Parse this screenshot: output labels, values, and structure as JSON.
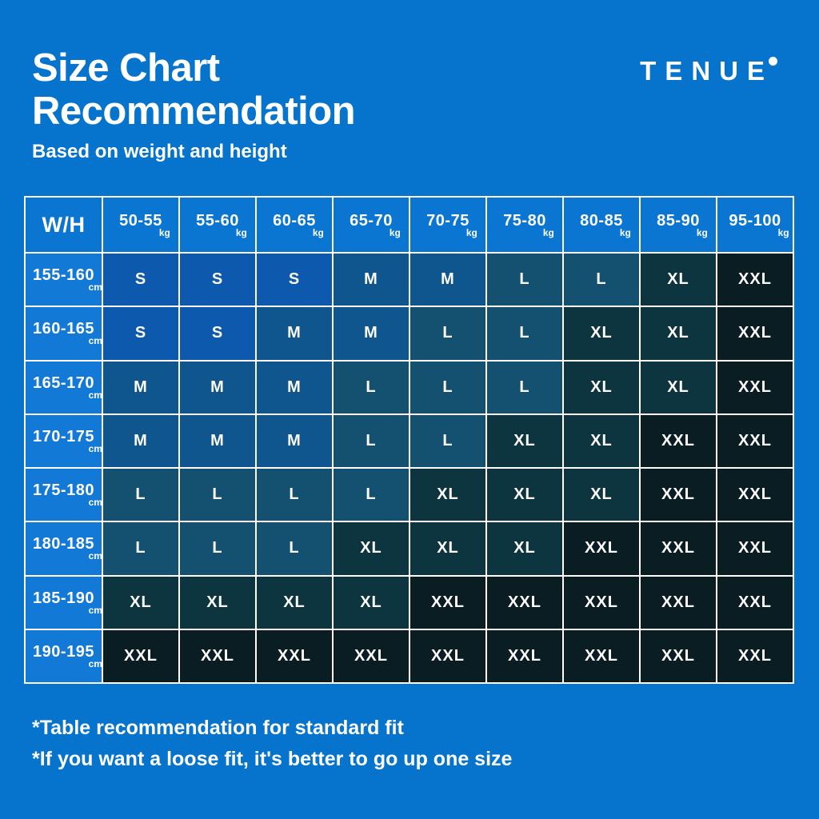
{
  "page": {
    "background_color": "#0673CD",
    "title_line1": "Size Chart",
    "title_line2": "Recommendation",
    "subtitle": "Based on weight and height",
    "brand": "TENUE",
    "footnote1": "*Table recommendation for standard fit",
    "footnote2": "*If you want a loose fit, it's better to go up one size"
  },
  "chart_data": {
    "type": "table",
    "title": "Size Chart Recommendation",
    "subtitle": "Based on weight and height",
    "corner_label": "W/H",
    "weight_unit": "kg",
    "height_unit": "cm",
    "weight_columns_kg": [
      "50-55",
      "55-60",
      "60-65",
      "65-70",
      "70-75",
      "75-80",
      "80-85",
      "85-90",
      "95-100"
    ],
    "height_rows_cm": [
      "155-160",
      "160-165",
      "165-170",
      "170-175",
      "175-180",
      "180-185",
      "185-190",
      "190-195"
    ],
    "sizes": [
      [
        "S",
        "S",
        "S",
        "M",
        "M",
        "L",
        "L",
        "XL",
        "XXL"
      ],
      [
        "S",
        "S",
        "M",
        "M",
        "L",
        "L",
        "XL",
        "XL",
        "XXL"
      ],
      [
        "M",
        "M",
        "M",
        "L",
        "L",
        "L",
        "XL",
        "XL",
        "XXL"
      ],
      [
        "M",
        "M",
        "M",
        "L",
        "L",
        "XL",
        "XL",
        "XXL",
        "XXL"
      ],
      [
        "L",
        "L",
        "L",
        "L",
        "XL",
        "XL",
        "XL",
        "XXL",
        "XXL"
      ],
      [
        "L",
        "L",
        "L",
        "XL",
        "XL",
        "XL",
        "XXL",
        "XXL",
        "XXL"
      ],
      [
        "XL",
        "XL",
        "XL",
        "XL",
        "XXL",
        "XXL",
        "XXL",
        "XXL",
        "XXL"
      ],
      [
        "XXL",
        "XXL",
        "XXL",
        "XXL",
        "XXL",
        "XXL",
        "XXL",
        "XXL",
        "XXL"
      ]
    ],
    "size_colors": {
      "S": "#0D59AD",
      "M": "#0F568F",
      "L": "#14506F",
      "XL": "#0D3540",
      "XXL": "#091D23"
    },
    "header_bg": "#0A76D2",
    "label_bg": "#1379D6",
    "grid_color": "#FFFFFF",
    "legend_position": "none",
    "grid": true
  }
}
